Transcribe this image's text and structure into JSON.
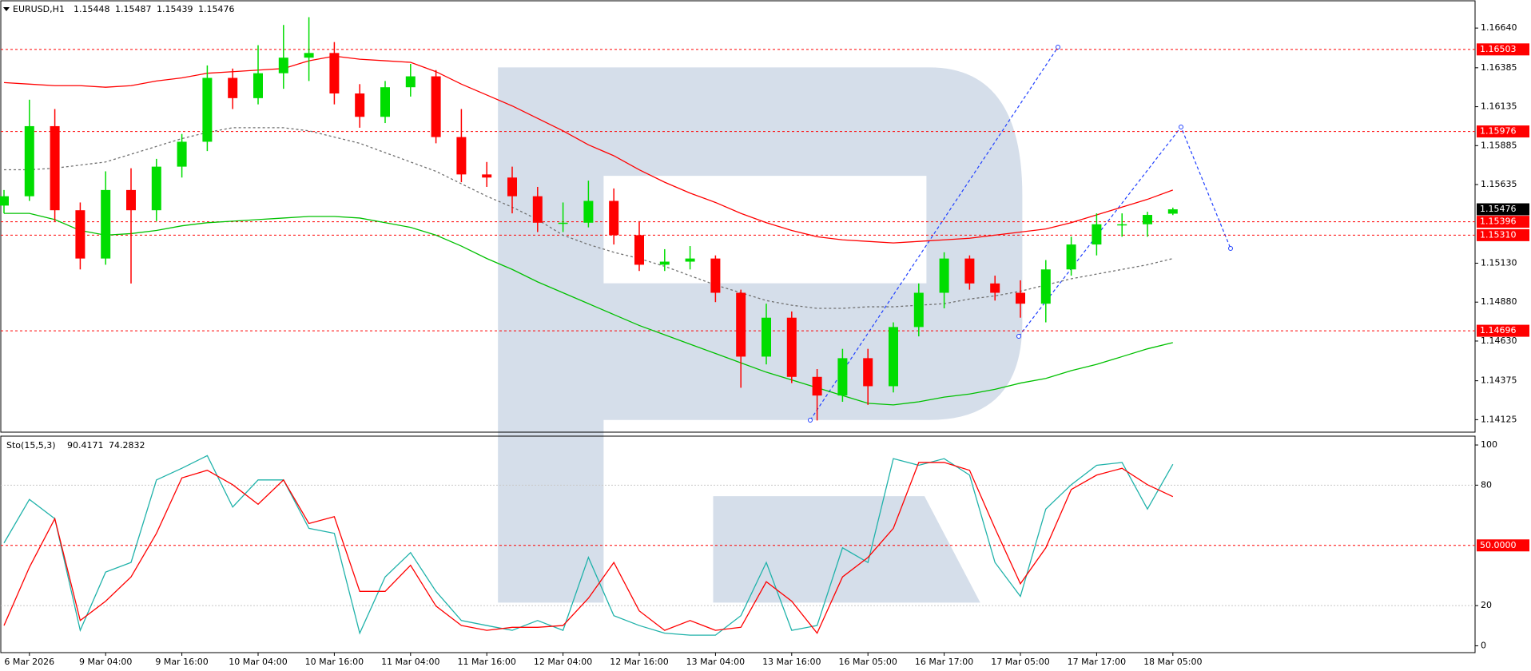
{
  "chart_data": [
    {
      "type": "candlestick",
      "title": "EURUSD,H1",
      "categories": [
        null,
        "6 Mar 2026",
        null,
        null,
        "9 Mar 04:00",
        null,
        null,
        "9 Mar 16:00",
        null,
        null,
        "10 Mar 04:00",
        null,
        null,
        "10 Mar 16:00",
        null,
        null,
        "11 Mar 04:00",
        null,
        null,
        "11 Mar 16:00",
        null,
        null,
        "12 Mar 04:00",
        null,
        null,
        "12 Mar 16:00",
        null,
        null,
        "13 Mar 04:00",
        null,
        null,
        "13 Mar 16:00",
        null,
        null,
        "16 Mar 05:00",
        null,
        null,
        "16 Mar 17:00",
        null,
        null,
        "17 Mar 05:00",
        null,
        null,
        "17 Mar 17:00",
        null,
        null,
        "18 Mar 05:00"
      ],
      "open": [
        1.155,
        1.1556,
        1.1601,
        1.1547,
        1.1516,
        1.156,
        1.1547,
        1.1575,
        1.1591,
        1.1632,
        1.1619,
        1.1635,
        1.1645,
        1.1648,
        1.1622,
        1.1607,
        1.1626,
        1.1633,
        1.1594,
        1.157,
        1.1568,
        1.1556,
        1.1539,
        1.1539,
        1.1553,
        1.1531,
        1.1512,
        1.1514,
        1.1516,
        1.1494,
        1.1453,
        1.1478,
        1.144,
        1.1428,
        1.1452,
        1.1434,
        1.1472,
        1.1494,
        1.1516,
        1.15,
        1.1494,
        1.1487,
        1.1509,
        1.1525,
        1.1538,
        1.1538,
        1.15448
      ],
      "high": [
        1.156,
        1.1618,
        1.1612,
        1.1552,
        1.1572,
        1.1574,
        1.158,
        1.1596,
        1.164,
        1.1638,
        1.1653,
        1.1666,
        1.1671,
        1.1655,
        1.1628,
        1.163,
        1.1641,
        1.1637,
        1.1612,
        1.1578,
        1.1575,
        1.1562,
        1.1552,
        1.1566,
        1.1561,
        1.154,
        1.1522,
        1.1524,
        1.1518,
        1.1496,
        1.1487,
        1.1482,
        1.1445,
        1.1458,
        1.1458,
        1.1475,
        1.15,
        1.152,
        1.1518,
        1.1505,
        1.1502,
        1.1515,
        1.153,
        1.1545,
        1.1545,
        1.1546,
        1.15487
      ],
      "low": [
        1.1545,
        1.1553,
        1.154,
        1.1509,
        1.1512,
        1.15,
        1.154,
        1.1568,
        1.1585,
        1.1612,
        1.1615,
        1.1625,
        1.163,
        1.1615,
        1.16,
        1.1603,
        1.162,
        1.159,
        1.1565,
        1.1562,
        1.1545,
        1.1533,
        1.1533,
        1.1536,
        1.1525,
        1.1508,
        1.1508,
        1.1509,
        1.1488,
        1.1433,
        1.1448,
        1.1436,
        1.1412,
        1.1424,
        1.1422,
        1.143,
        1.1466,
        1.1484,
        1.1496,
        1.1489,
        1.1478,
        1.1475,
        1.1505,
        1.1518,
        1.153,
        1.153,
        1.15439
      ],
      "close": [
        1.1556,
        1.1601,
        1.1547,
        1.1516,
        1.156,
        1.1547,
        1.1575,
        1.1591,
        1.1632,
        1.1619,
        1.1635,
        1.1645,
        1.1648,
        1.1622,
        1.1607,
        1.1626,
        1.1633,
        1.1594,
        1.157,
        1.1568,
        1.1556,
        1.1539,
        1.1539,
        1.1553,
        1.1531,
        1.1512,
        1.1514,
        1.1516,
        1.1494,
        1.1453,
        1.1478,
        1.144,
        1.1428,
        1.1452,
        1.1434,
        1.1472,
        1.1494,
        1.1516,
        1.15,
        1.1494,
        1.1487,
        1.1509,
        1.1525,
        1.1538,
        1.1538,
        1.1544,
        1.15476
      ],
      "up_color": "#00dd00",
      "down_color": "#ff0000",
      "overlays": [
        {
          "color": "#ff0000",
          "dashed": false,
          "values": [
            1.1629,
            1.1628,
            1.1627,
            1.1627,
            1.1626,
            1.1627,
            1.163,
            1.1632,
            1.1635,
            1.1636,
            1.1637,
            1.1638,
            1.1643,
            1.1646,
            1.1644,
            1.1643,
            1.1642,
            1.1636,
            1.1628,
            1.1621,
            1.1614,
            1.1606,
            1.1598,
            1.1589,
            1.1582,
            1.1573,
            1.1565,
            1.1558,
            1.1552,
            1.1545,
            1.1539,
            1.1534,
            1.153,
            1.1528,
            1.1527,
            1.1526,
            1.1527,
            1.1528,
            1.1529,
            1.1531,
            1.1533,
            1.1535,
            1.1539,
            1.1544,
            1.1549,
            1.1554,
            1.156
          ]
        },
        {
          "color": "#00c000",
          "dashed": false,
          "values": [
            1.1545,
            1.1545,
            1.1541,
            1.1534,
            1.1531,
            1.1532,
            1.1534,
            1.1537,
            1.1539,
            1.154,
            1.1541,
            1.1542,
            1.1543,
            1.1543,
            1.1542,
            1.1539,
            1.1536,
            1.1531,
            1.1524,
            1.1516,
            1.1509,
            1.1501,
            1.1494,
            1.1487,
            1.148,
            1.1473,
            1.1467,
            1.1461,
            1.1455,
            1.1449,
            1.1443,
            1.1438,
            1.1433,
            1.1428,
            1.1423,
            1.1422,
            1.1424,
            1.1427,
            1.1429,
            1.1432,
            1.1436,
            1.1439,
            1.1444,
            1.1448,
            1.1453,
            1.1458,
            1.1462
          ]
        },
        {
          "color": "#707070",
          "dashed": true,
          "values": [
            1.1573,
            1.1573,
            1.1574,
            1.1576,
            1.1578,
            1.1583,
            1.1588,
            1.1593,
            1.1597,
            1.16,
            1.16,
            1.16,
            1.1598,
            1.1594,
            1.159,
            1.1584,
            1.1578,
            1.1572,
            1.1564,
            1.1556,
            1.1549,
            1.1541,
            1.1531,
            1.1525,
            1.152,
            1.1516,
            1.1511,
            1.1505,
            1.1499,
            1.1494,
            1.1489,
            1.1486,
            1.1484,
            1.1484,
            1.1485,
            1.1485,
            1.1486,
            1.1487,
            1.149,
            1.1492,
            1.1495,
            1.1499,
            1.1503,
            1.1506,
            1.1509,
            1.1512,
            1.1516
          ]
        }
      ],
      "levels": [
        1.16503,
        1.15976,
        1.15396,
        {
          "value": 1.1531,
          "label": "1.15310"
        },
        1.14696
      ],
      "level_color": "#ff0000",
      "ylim": [
        1.1405,
        1.1681
      ],
      "yticks": [
        {
          "value": 1.1664,
          "label": "1.16640"
        },
        1.16385,
        1.16135,
        1.15885,
        1.15635,
        {
          "value": 1.1513,
          "label": "1.15130"
        },
        {
          "value": 1.1488,
          "label": "1.14880"
        },
        {
          "value": 1.1463,
          "label": "1.14630"
        },
        1.14375,
        1.14125
      ]
    },
    {
      "type": "line",
      "title": "Sto(15,5,3)",
      "series": [
        {
          "color": "#20b2aa",
          "values": [
            51.2,
            72.9,
            63.3,
            7.7,
            36.7,
            41.5,
            82.6,
            88.4,
            94.7,
            69.1,
            82.6,
            82.6,
            58.5,
            56.0,
            6.3,
            34.3,
            46.4,
            27.1,
            12.6,
            10.1,
            7.7,
            12.6,
            7.7,
            44.0,
            15.0,
            10.1,
            6.3,
            5.3,
            5.3,
            15.0,
            41.5,
            7.7,
            10.1,
            48.8,
            41.5,
            93.2,
            89.9,
            93.2,
            85.0,
            41.5,
            24.6,
            68.1,
            80.2,
            89.9,
            91.3,
            68.1,
            90.4171
          ]
        },
        {
          "color": "#ff0000",
          "values": [
            10.1,
            39.1,
            63.3,
            12.6,
            22.2,
            34.3,
            56.0,
            83.6,
            87.4,
            80.2,
            70.5,
            82.6,
            60.9,
            64.3,
            27.1,
            27.1,
            40.1,
            19.8,
            10.1,
            7.7,
            9.2,
            9.2,
            10.1,
            23.7,
            41.5,
            17.4,
            7.7,
            12.6,
            7.7,
            9.2,
            31.9,
            22.2,
            6.3,
            34.3,
            44.0,
            58.5,
            91.3,
            91.3,
            87.4,
            58.5,
            30.9,
            48.8,
            77.8,
            85.0,
            88.4,
            80.2,
            74.2832
          ]
        }
      ],
      "levels": [
        {
          "value": 50,
          "label": "50.0000"
        }
      ],
      "level_color": "#ff0000",
      "guides": [
        20,
        80
      ],
      "guide_color": "#c8c8c8",
      "ylim": [
        -3,
        104
      ],
      "yticks": [
        0,
        20,
        80,
        100
      ]
    }
  ]
}
